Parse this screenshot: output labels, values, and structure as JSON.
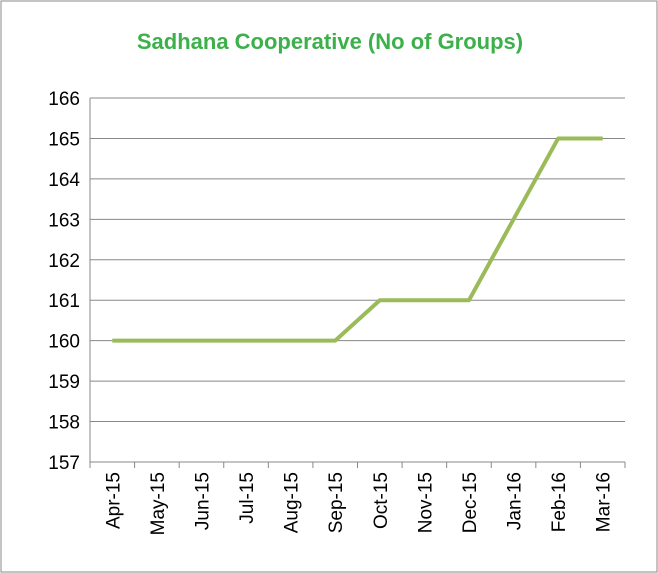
{
  "chart_data": {
    "type": "line",
    "title": "Sadhana Cooperative (No of Groups)",
    "categories": [
      "Apr-15",
      "May-15",
      "Jun-15",
      "Jul-15",
      "Aug-15",
      "Sep-15",
      "Oct-15",
      "Nov-15",
      "Dec-15",
      "Jan-16",
      "Feb-16",
      "Mar-16"
    ],
    "values": [
      160,
      160,
      160,
      160,
      160,
      160,
      161,
      161,
      161,
      163,
      165,
      165
    ],
    "color": "#9bbb59",
    "ylim": [
      157,
      166
    ],
    "yticks": [
      157,
      158,
      159,
      160,
      161,
      162,
      163,
      164,
      165,
      166
    ],
    "grid": true
  }
}
